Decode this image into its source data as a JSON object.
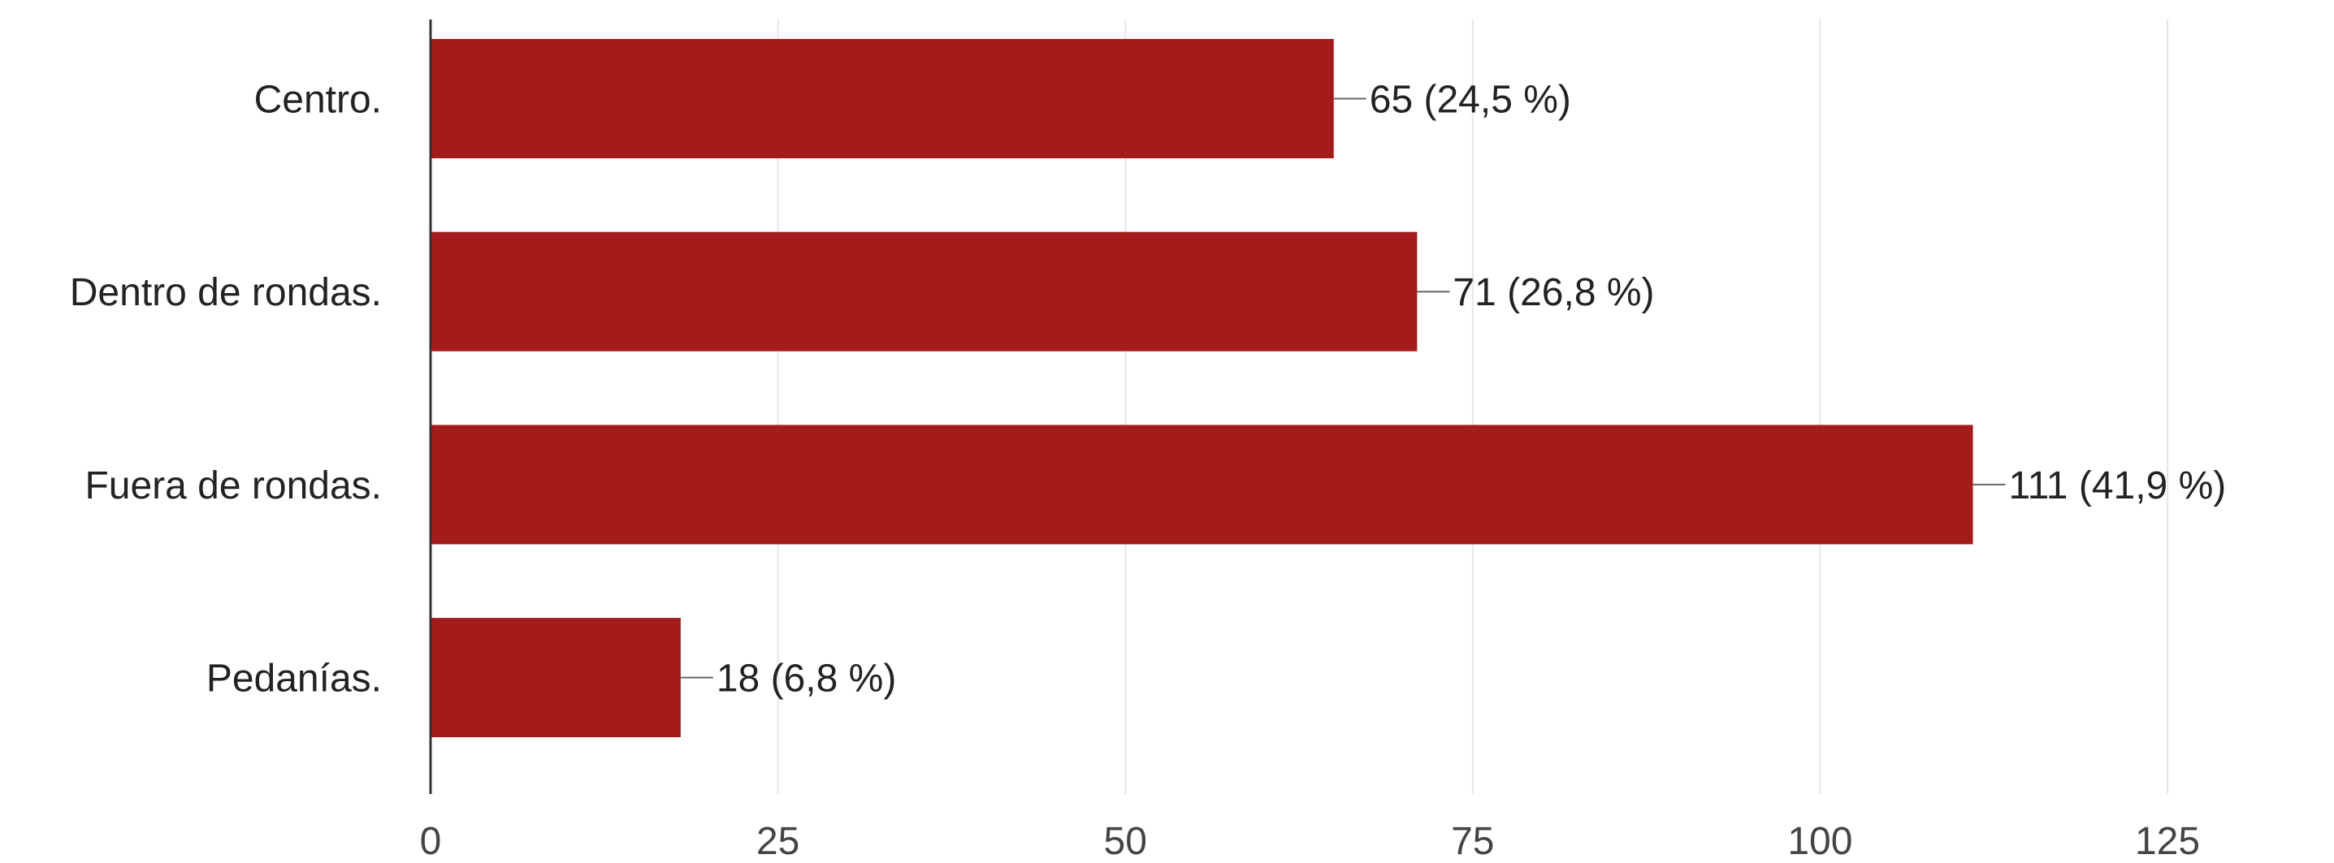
{
  "chart_data": {
    "type": "bar",
    "orientation": "horizontal",
    "categories": [
      "Centro.",
      "Dentro de rondas.",
      "Fuera de rondas.",
      "Pedanías."
    ],
    "values": [
      65,
      71,
      111,
      18
    ],
    "data_labels": [
      "65 (24,5 %)",
      "71 (26,8 %)",
      "111 (41,9 %)",
      "18 (6,8 %)"
    ],
    "xlim": [
      0,
      125
    ],
    "xticks": [
      0,
      25,
      50,
      75,
      100,
      125
    ],
    "xtick_labels": [
      "0",
      "25",
      "50",
      "75",
      "100",
      "125"
    ],
    "grid": true,
    "bar_color": "#a31b1b",
    "title": "",
    "xlabel": "",
    "ylabel": ""
  }
}
